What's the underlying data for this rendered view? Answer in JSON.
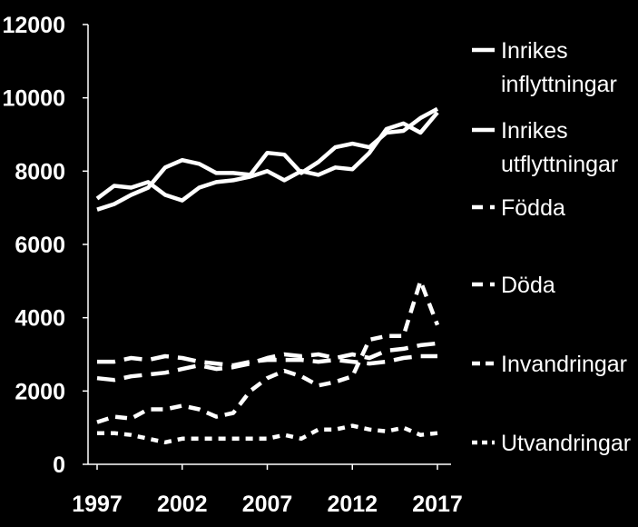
{
  "chart_data": {
    "type": "line",
    "title": "",
    "xlabel": "",
    "ylabel": "",
    "xlim": [
      1997,
      2017
    ],
    "ylim": [
      0,
      12000
    ],
    "y_ticks": [
      0,
      2000,
      4000,
      6000,
      8000,
      10000,
      12000
    ],
    "x_ticks": [
      1997,
      2002,
      2007,
      2012,
      2017
    ],
    "grid": false,
    "legend_position": "right",
    "background": "#000000",
    "line_color": "#ffffff",
    "x": [
      1997,
      1998,
      1999,
      2000,
      2001,
      2002,
      2003,
      2004,
      2005,
      2006,
      2007,
      2008,
      2009,
      2010,
      2011,
      2012,
      2013,
      2014,
      2015,
      2016,
      2017
    ],
    "series": [
      {
        "name": "Inrikes inflyttningar",
        "name_lines": [
          "Inrikes",
          "inflyttningar"
        ],
        "dash": "solid",
        "values": [
          7250,
          7600,
          7550,
          7700,
          7350,
          7200,
          7550,
          7700,
          7750,
          7850,
          8000,
          7750,
          8000,
          7900,
          8100,
          8050,
          8500,
          9150,
          9300,
          9050,
          9600
        ]
      },
      {
        "name": "Inrikes utflyttningar",
        "name_lines": [
          "Inrikes",
          "utflyttningar"
        ],
        "dash": "solid",
        "values": [
          6950,
          7100,
          7350,
          7550,
          8100,
          8300,
          8200,
          7950,
          7950,
          7900,
          8500,
          8450,
          7950,
          8250,
          8650,
          8750,
          8650,
          9050,
          9100,
          9450,
          9700
        ]
      },
      {
        "name": "Födda",
        "name_lines": [
          "Födda"
        ],
        "dash": "long",
        "values": [
          2800,
          2800,
          2900,
          2850,
          2950,
          2900,
          2800,
          2750,
          2700,
          2800,
          2850,
          2850,
          2850,
          2800,
          2850,
          2800,
          2750,
          2800,
          2900,
          2950,
          2950
        ]
      },
      {
        "name": "Döda",
        "name_lines": [
          "Döda"
        ],
        "dash": "long",
        "values": [
          2350,
          2300,
          2400,
          2450,
          2500,
          2600,
          2700,
          2600,
          2650,
          2750,
          2900,
          3000,
          2950,
          3000,
          2900,
          3000,
          2900,
          3100,
          3150,
          3250,
          3300
        ]
      },
      {
        "name": "Invandringar",
        "name_lines": [
          "Invandringar"
        ],
        "dash": "medium",
        "values": [
          1150,
          1300,
          1250,
          1500,
          1500,
          1600,
          1500,
          1300,
          1400,
          2000,
          2350,
          2550,
          2400,
          2150,
          2250,
          2400,
          3400,
          3500,
          3500,
          5000,
          3800
        ]
      },
      {
        "name": "Utvandringar",
        "name_lines": [
          "Utvandringar"
        ],
        "dash": "short",
        "values": [
          850,
          850,
          800,
          700,
          600,
          700,
          700,
          700,
          700,
          700,
          700,
          800,
          700,
          950,
          950,
          1050,
          950,
          900,
          1000,
          800,
          850
        ]
      }
    ]
  }
}
